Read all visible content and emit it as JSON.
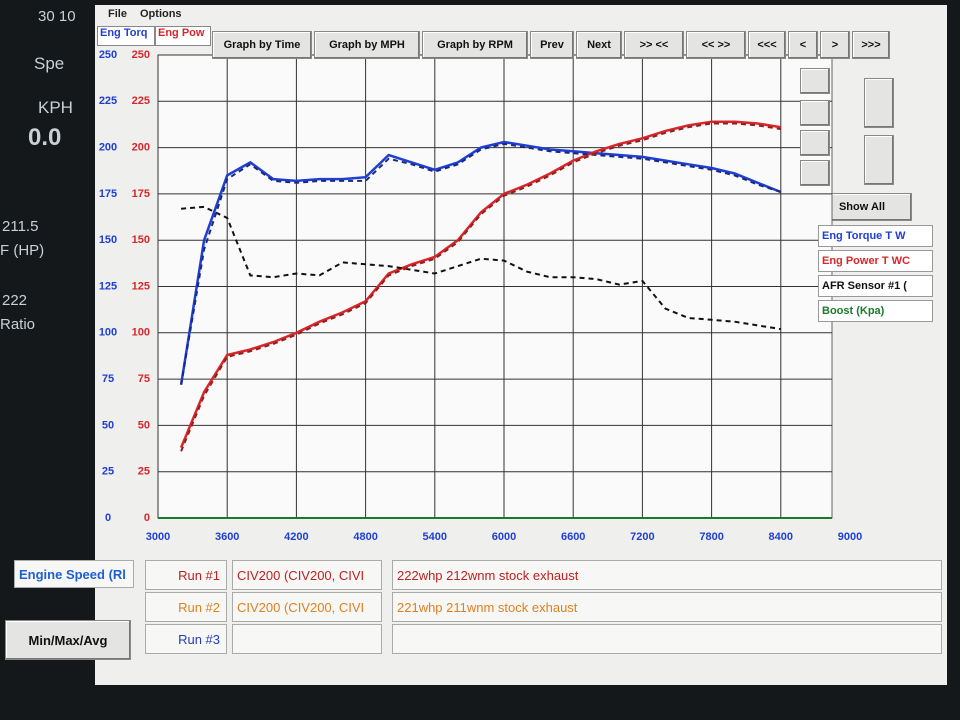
{
  "background_app": [
    "30 10",
    "Spe",
    "KPH",
    "0.0",
    "211.5",
    "F (HP)",
    "222",
    "Ratio"
  ],
  "menu": [
    "File",
    "Options"
  ],
  "toolbar": [
    "Graph by Time",
    "Graph by MPH",
    "Graph by RPM",
    "Prev",
    "Next",
    ">> <<",
    "<< >>",
    "<<<",
    "<",
    ">",
    ">>>"
  ],
  "show_all": "Show All",
  "extra_channels": [
    {
      "name": "Boost (Kpa)",
      "color": "#1a7a2a"
    }
  ],
  "min_max_button": "Min/Max/Avg",
  "runs": [
    {
      "label": "Run #1",
      "vehicle": "CIV200 (CIV200, CIVI",
      "note": "222whp 212wnm stock exhaust"
    },
    {
      "label": "Run #2",
      "vehicle": "CIV200 (CIV200, CIVI",
      "note": "221whp 211wnm stock exhaust"
    },
    {
      "label": "Run #3"
    }
  ],
  "chart_data": {
    "type": "line",
    "ylabel": "Eng Torq",
    "y2label": "Eng Pow",
    "xlabel": "Engine Speed (Rl",
    "grid": true,
    "xlim": [
      3000,
      9000
    ],
    "xticks": [
      3000,
      3600,
      4200,
      4800,
      5400,
      6000,
      6600,
      7200,
      7800,
      8400,
      9000
    ],
    "ylim": [
      0,
      250
    ],
    "yticks": [
      0,
      25,
      50,
      75,
      100,
      125,
      150,
      175,
      200,
      225,
      250
    ],
    "y2lim": [
      0,
      250
    ],
    "y2ticks": [
      0,
      25,
      50,
      75,
      100,
      125,
      150,
      175,
      200,
      225,
      250
    ],
    "x": [
      3200,
      3400,
      3600,
      3800,
      4000,
      4200,
      4400,
      4600,
      4800,
      5000,
      5200,
      5400,
      5600,
      5800,
      6000,
      6200,
      6400,
      6600,
      6800,
      7000,
      7200,
      7400,
      7600,
      7800,
      8000,
      8200,
      8400
    ],
    "series": [
      {
        "name": "Eng Torque T W",
        "color": "#1f3fd2",
        "values": [
          72,
          150,
          185,
          192,
          183,
          182,
          183,
          183,
          184,
          196,
          192,
          188,
          192,
          200,
          203,
          201,
          199,
          198,
          197,
          196,
          195,
          193,
          191,
          189,
          186,
          181,
          176
        ]
      },
      {
        "name": "Eng Power T WC",
        "color": "#d8262a",
        "axis": "y2",
        "values": [
          38,
          68,
          88,
          91,
          95,
          100,
          106,
          111,
          117,
          132,
          137,
          141,
          150,
          165,
          175,
          180,
          186,
          193,
          198,
          202,
          205,
          209,
          212,
          214,
          214,
          213,
          211
        ]
      },
      {
        "name": "AFR Sensor #1 (",
        "color": "#111111",
        "dash": true,
        "values": [
          167,
          168,
          162,
          131,
          130,
          132,
          131,
          138,
          137,
          136,
          134,
          132,
          136,
          140,
          139,
          133,
          130,
          130,
          129,
          126,
          128,
          113,
          108,
          107,
          106,
          104,
          102
        ]
      },
      {
        "color": "#1a2a80",
        "dash": true,
        "values": [
          72,
          145,
          183,
          191,
          182,
          181,
          182,
          182,
          182,
          194,
          191,
          187,
          191,
          199,
          202,
          200,
          198,
          197,
          196,
          195,
          194,
          192,
          190,
          188,
          185,
          180,
          176
        ]
      },
      {
        "color": "#902020",
        "dash": true,
        "axis": "y2",
        "values": [
          36,
          66,
          87,
          90,
          94,
          99,
          105,
          110,
          116,
          131,
          136,
          140,
          149,
          164,
          174,
          179,
          185,
          192,
          197,
          201,
          204,
          208,
          211,
          213,
          213,
          212,
          210
        ]
      }
    ]
  }
}
